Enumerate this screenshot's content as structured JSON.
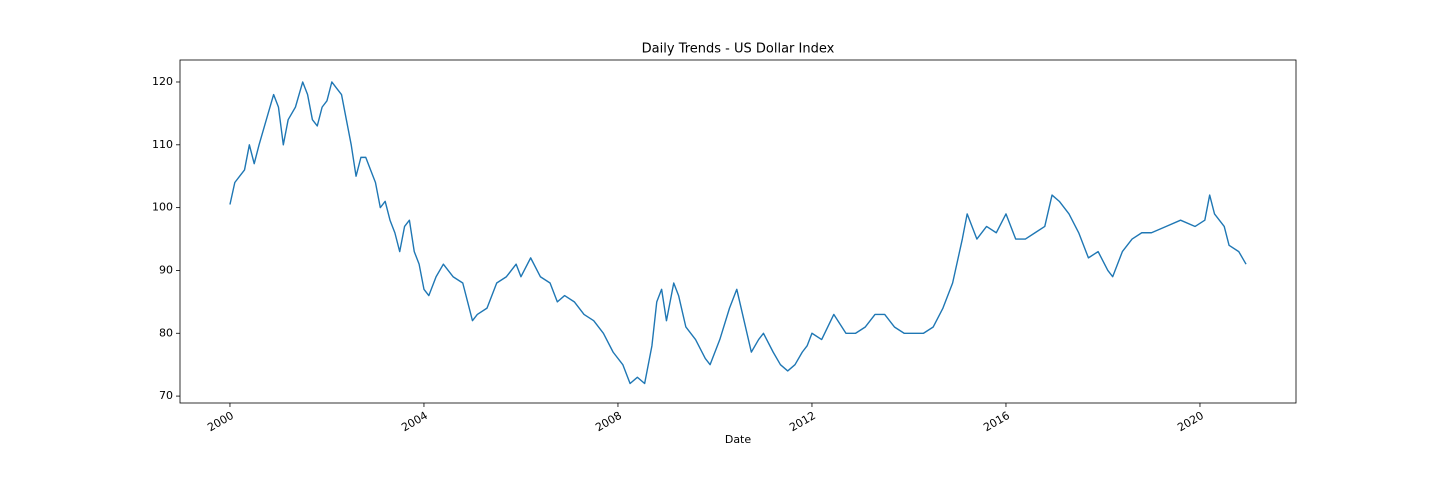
{
  "chart_data": {
    "type": "line",
    "title": "Daily Trends - US Dollar Index",
    "x_label": "Date",
    "color": "#1f77b4",
    "xlim": [
      1998.97,
      2021.98
    ],
    "xticks": [
      2000,
      2004,
      2008,
      2012,
      2016,
      2020
    ],
    "ylim": [
      68.9,
      123.5
    ],
    "yticks": [
      70,
      80,
      90,
      100,
      110,
      120
    ],
    "grid": false,
    "x": [
      2000.0,
      2000.1,
      2000.2,
      2000.3,
      2000.4,
      2000.5,
      2000.6,
      2000.75,
      2000.9,
      2001.0,
      2001.1,
      2001.2,
      2001.35,
      2001.5,
      2001.6,
      2001.7,
      2001.8,
      2001.9,
      2002.0,
      2002.1,
      2002.2,
      2002.3,
      2002.4,
      2002.5,
      2002.6,
      2002.7,
      2002.8,
      2002.9,
      2003.0,
      2003.1,
      2003.2,
      2003.3,
      2003.4,
      2003.5,
      2003.6,
      2003.7,
      2003.8,
      2003.9,
      2004.0,
      2004.1,
      2004.25,
      2004.4,
      2004.6,
      2004.8,
      2004.9,
      2005.0,
      2005.1,
      2005.3,
      2005.5,
      2005.7,
      2005.9,
      2006.0,
      2006.2,
      2006.4,
      2006.6,
      2006.75,
      2006.9,
      2007.1,
      2007.3,
      2007.5,
      2007.7,
      2007.9,
      2008.1,
      2008.25,
      2008.4,
      2008.55,
      2008.7,
      2008.8,
      2008.9,
      2009.0,
      2009.15,
      2009.25,
      2009.4,
      2009.6,
      2009.8,
      2009.9,
      2010.1,
      2010.3,
      2010.45,
      2010.6,
      2010.75,
      2010.9,
      2011.0,
      2011.2,
      2011.35,
      2011.5,
      2011.65,
      2011.8,
      2011.9,
      2012.0,
      2012.2,
      2012.45,
      2012.7,
      2012.9,
      2013.1,
      2013.3,
      2013.5,
      2013.7,
      2013.9,
      2014.1,
      2014.3,
      2014.5,
      2014.7,
      2014.9,
      2015.1,
      2015.2,
      2015.4,
      2015.6,
      2015.8,
      2016.0,
      2016.2,
      2016.4,
      2016.6,
      2016.8,
      2016.95,
      2017.1,
      2017.3,
      2017.5,
      2017.7,
      2017.9,
      2018.1,
      2018.2,
      2018.4,
      2018.6,
      2018.8,
      2019.0,
      2019.3,
      2019.6,
      2019.9,
      2020.1,
      2020.2,
      2020.3,
      2020.5,
      2020.6,
      2020.8,
      2020.95
    ],
    "values": [
      100.5,
      104,
      105,
      106,
      110,
      107,
      110,
      114,
      118,
      116,
      110,
      114,
      116,
      120,
      118,
      114,
      113,
      116,
      117,
      120,
      119,
      118,
      114,
      110,
      105,
      108,
      108,
      106,
      104,
      100,
      101,
      98,
      96,
      93,
      97,
      98,
      93,
      91,
      87,
      86,
      89,
      91,
      89,
      88,
      85,
      82,
      83,
      84,
      88,
      89,
      91,
      89,
      92,
      89,
      88,
      85,
      86,
      85,
      83,
      82,
      80,
      77,
      75,
      72,
      73,
      72,
      78,
      85,
      87,
      82,
      88,
      86,
      81,
      79,
      76,
      75,
      79,
      84,
      87,
      82,
      77,
      79,
      80,
      77,
      75,
      74,
      75,
      77,
      78,
      80,
      79,
      83,
      80,
      80,
      81,
      83,
      83,
      81,
      80,
      80,
      80,
      81,
      84,
      88,
      95,
      99,
      95,
      97,
      96,
      99,
      95,
      95,
      96,
      97,
      102,
      101,
      99,
      96,
      92,
      93,
      90,
      89,
      93,
      95,
      96,
      96,
      97,
      98,
      97,
      98,
      102,
      99,
      97,
      94,
      93,
      91
    ]
  }
}
